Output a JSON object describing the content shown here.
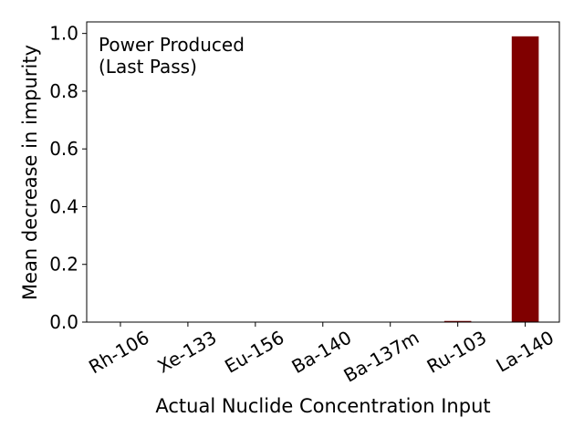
{
  "chart_data": {
    "type": "bar",
    "categories": [
      "Rh-106",
      "Xe-133",
      "Eu-156",
      "Ba-140",
      "Ba-137m",
      "Ru-103",
      "La-140"
    ],
    "values": [
      0.0,
      0.0,
      0.0,
      0.0,
      0.0,
      0.004,
      0.99
    ],
    "xlabel": "Actual Nuclide Concentration Input",
    "ylabel": "Mean decrease in impurity",
    "annotation": [
      "Power Produced",
      "(Last Pass)"
    ],
    "ylim": [
      0,
      1.04
    ],
    "yticks": [
      0.0,
      0.2,
      0.4,
      0.6,
      0.8,
      1.0
    ],
    "ytick_labels": [
      "0.0",
      "0.2",
      "0.4",
      "0.6",
      "0.8",
      "1.0"
    ],
    "bar_color": "#800000",
    "grid": false,
    "legend": "none"
  }
}
